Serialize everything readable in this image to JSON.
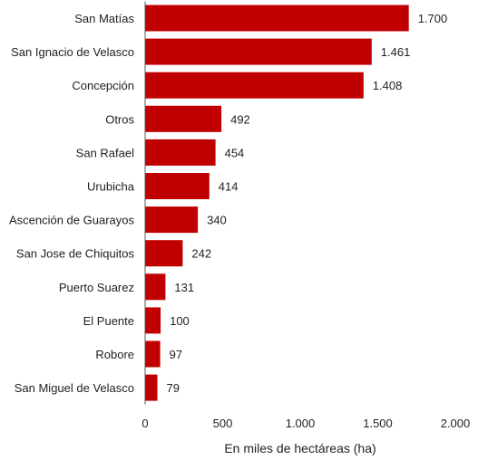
{
  "chart_data": {
    "type": "bar",
    "orientation": "horizontal",
    "title": "",
    "ylabel": "",
    "xlabel": "En miles de hectáreas (ha)",
    "categories": [
      "San Matías",
      "San Ignacio de Velasco",
      "Concepción",
      "Otros",
      "San Rafael",
      "Urubicha",
      "Ascención de Guarayos",
      "San Jose de Chiquitos",
      "Puerto Suarez",
      "El Puente",
      "Robore",
      "San Miguel de Velasco"
    ],
    "values": [
      1700,
      1461,
      1408,
      492,
      454,
      414,
      340,
      242,
      131,
      100,
      97,
      79
    ],
    "value_labels": [
      "1.700",
      "1.461",
      "1.408",
      "492",
      "454",
      "414",
      "340",
      "242",
      "131",
      "100",
      "97",
      "79"
    ],
    "xlim": [
      0,
      2000
    ],
    "xticks": [
      0,
      500,
      1000,
      1500,
      2000
    ],
    "xtick_labels": [
      "0",
      "500",
      "1.000",
      "1.500",
      "2.000"
    ],
    "grid": false,
    "legend": "none",
    "bar_color": "#C00000"
  }
}
